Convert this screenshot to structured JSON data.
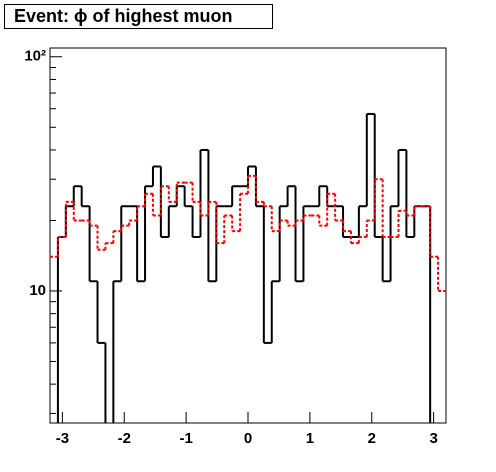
{
  "chart_data": {
    "type": "histogram",
    "title": "Event: ϕ of highest muon",
    "bins": [
      -3.2,
      -3.072,
      -2.944,
      -2.816,
      -2.688,
      -2.56,
      -2.432,
      -2.304,
      -2.176,
      -2.048,
      -1.92,
      -1.792,
      -1.664,
      -1.536,
      -1.408,
      -1.28,
      -1.152,
      -1.024,
      -0.896,
      -0.768,
      -0.64,
      -0.512,
      -0.384,
      -0.256,
      -0.128,
      0,
      0.128,
      0.256,
      0.384,
      0.512,
      0.64,
      0.768,
      0.896,
      1.024,
      1.152,
      1.28,
      1.408,
      1.536,
      1.664,
      1.792,
      1.92,
      2.048,
      2.176,
      2.304,
      2.432,
      2.56,
      2.688,
      2.816,
      2.944,
      3.072,
      3.2
    ],
    "series": [
      {
        "color": "#000000",
        "dash": "solid",
        "values": [
          0,
          17,
          23,
          28,
          23,
          11,
          6,
          0,
          11,
          23,
          23,
          11,
          28,
          34,
          17,
          23,
          28,
          23,
          17,
          40,
          11,
          23,
          23,
          28,
          28,
          34,
          23,
          6,
          11,
          23,
          28,
          11,
          23,
          23,
          28,
          23,
          23,
          17,
          17,
          23,
          57,
          17,
          11,
          23,
          40,
          17,
          23,
          23,
          0,
          0
        ]
      },
      {
        "color": "#ff0000",
        "dash": "dashed",
        "values": [
          14,
          17,
          24,
          20,
          20,
          19,
          15,
          16,
          18,
          19,
          20,
          23,
          26,
          21,
          28,
          24,
          29,
          29,
          24,
          21,
          24,
          16,
          21,
          18,
          26,
          31,
          24,
          23,
          18,
          20,
          19,
          20,
          21,
          21,
          19,
          26,
          20,
          18,
          16,
          17,
          20,
          30,
          17,
          17,
          22,
          21,
          23,
          23,
          14,
          10
        ]
      }
    ],
    "xlim": [
      -3.2,
      3.2
    ],
    "ylim": [
      2.73,
      109
    ],
    "log_y": true,
    "xticks": [
      -3,
      -2,
      -1,
      0,
      1,
      2,
      3
    ],
    "yticks": [
      10,
      {
        "value": 100,
        "label": "10²"
      }
    ],
    "yminor_ticks": [
      3,
      4,
      5,
      6,
      7,
      8,
      9,
      20,
      30,
      40,
      50,
      60,
      70,
      80,
      90
    ]
  }
}
